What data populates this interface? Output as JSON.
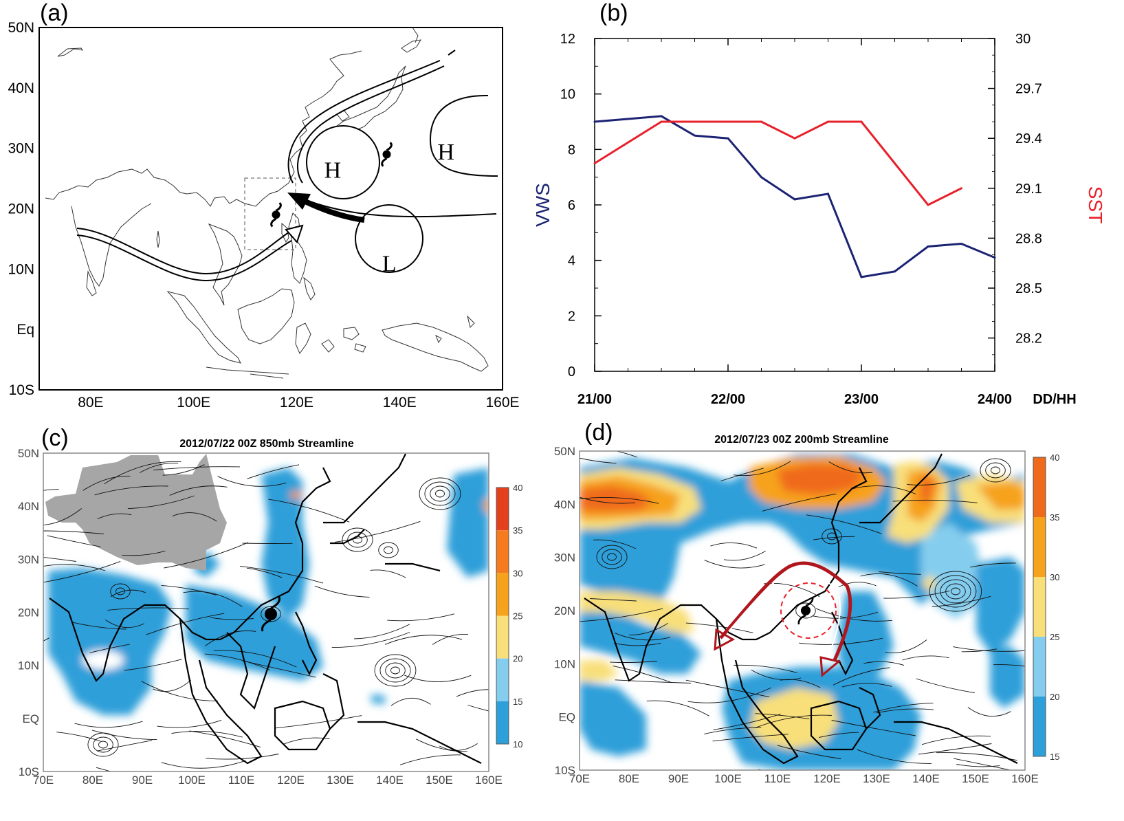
{
  "panels": {
    "a": {
      "label": "(a)"
    },
    "b": {
      "label": "(b)"
    },
    "c": {
      "label": "(c)"
    },
    "d": {
      "label": "(d)"
    }
  },
  "chart_data": [
    {
      "panel": "a",
      "type": "map",
      "lat_ticks": [
        "50N",
        "40N",
        "30N",
        "20N",
        "10N",
        "Eq",
        "10S"
      ],
      "lon_ticks": [
        "80E",
        "100E",
        "120E",
        "140E",
        "160E"
      ],
      "pressure_systems": [
        {
          "letter": "H",
          "lon": 127,
          "lat": 26.5
        },
        {
          "letter": "H",
          "lon": 149,
          "lat": 29.5
        },
        {
          "letter": "L",
          "lon": 138,
          "lat": 11
        }
      ],
      "typhoon_symbols": [
        {
          "lon": 116,
          "lat": 19
        },
        {
          "lon": 137.5,
          "lat": 29
        }
      ]
    },
    {
      "panel": "b",
      "type": "line",
      "x_ticks": [
        "21/00",
        "22/00",
        "23/00",
        "24/00"
      ],
      "x_unit": "DD/HH",
      "y_left": {
        "label": "VWS",
        "ticks": [
          0,
          2,
          4,
          6,
          8,
          10,
          12
        ],
        "lim": [
          0,
          12
        ],
        "color": "#1c2373"
      },
      "y_right": {
        "label": "SST",
        "ticks": [
          28.2,
          28.5,
          28.8,
          29.1,
          29.4,
          29.7,
          30
        ],
        "lim": [
          28.0,
          30.0
        ],
        "color": "#e8202a"
      },
      "series": [
        {
          "name": "VWS",
          "axis": "left",
          "color": "#1c2373",
          "x": [
            0,
            6,
            12,
            18,
            24,
            30,
            36,
            42,
            48,
            54,
            60,
            66,
            72
          ],
          "values": [
            9.0,
            9.1,
            9.2,
            8.5,
            8.4,
            7.0,
            6.2,
            6.4,
            3.4,
            3.6,
            4.5,
            4.6,
            4.1
          ]
        },
        {
          "name": "SST",
          "axis": "right",
          "color": "#e8202a",
          "x": [
            0,
            12,
            18,
            24,
            30,
            36,
            42,
            48,
            54,
            60,
            66
          ],
          "values": [
            29.25,
            29.5,
            29.5,
            29.5,
            29.5,
            29.4,
            29.5,
            29.5,
            29.25,
            29.0,
            29.1
          ]
        }
      ]
    },
    {
      "panel": "c",
      "type": "streamline_map",
      "title": "2012/07/22 00Z 850mb Streamline",
      "lat_ticks": [
        "50N",
        "40N",
        "30N",
        "20N",
        "10N",
        "EQ",
        "10S"
      ],
      "lon_ticks": [
        "70E",
        "80E",
        "90E",
        "100E",
        "110E",
        "120E",
        "130E",
        "140E",
        "150E",
        "160E"
      ],
      "colorbar_ticks": [
        "40",
        "35",
        "30",
        "25",
        "20",
        "15",
        "10"
      ],
      "colorbar_colors": [
        "#e5401e",
        "#f57b1e",
        "#f6a21c",
        "#f8df7a",
        "#85cdee",
        "#2d9fd9"
      ]
    },
    {
      "panel": "d",
      "type": "streamline_map",
      "title": "2012/07/23 00Z 200mb Streamline",
      "lat_ticks": [
        "50N",
        "40N",
        "30N",
        "20N",
        "10N",
        "EQ",
        "10S"
      ],
      "lon_ticks": [
        "70E",
        "80E",
        "90E",
        "100E",
        "110E",
        "120E",
        "130E",
        "140E",
        "150E",
        "160E"
      ],
      "colorbar_ticks": [
        "40",
        "35",
        "30",
        "25",
        "20",
        "15"
      ],
      "colorbar_colors": [
        "#f06a1c",
        "#f6a21c",
        "#f8df7a",
        "#85cdee",
        "#2d9fd9"
      ]
    }
  ]
}
